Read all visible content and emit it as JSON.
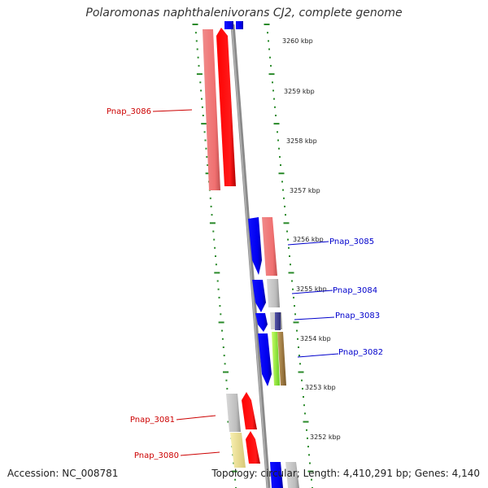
{
  "title": "Polaromonas naphthalenivorans CJ2, complete genome",
  "footer": {
    "accession": "Accession: NC_008781",
    "topology": "Topology: circular; Length: 4,410,291 bp; Genes: 4,140"
  },
  "colors": {
    "backbone": "#888888",
    "ruler_dots": "#2a8a2a",
    "forward_label": "#cc0000",
    "reverse_label": "#0000cc"
  },
  "ticks": [
    "3260 kbp",
    "3259 kbp",
    "3258 kbp",
    "3257 kbp",
    "3256 kbp",
    "3255 kbp",
    "3254 kbp",
    "3253 kbp",
    "3252 kbp"
  ],
  "genes": [
    {
      "name": "Pnap_3086",
      "strand": "forward"
    },
    {
      "name": "Pnap_3085",
      "strand": "reverse"
    },
    {
      "name": "Pnap_3084",
      "strand": "reverse"
    },
    {
      "name": "Pnap_3083",
      "strand": "reverse"
    },
    {
      "name": "Pnap_3082",
      "strand": "reverse"
    },
    {
      "name": "Pnap_3081",
      "strand": "forward"
    },
    {
      "name": "Pnap_3080",
      "strand": "forward"
    }
  ]
}
